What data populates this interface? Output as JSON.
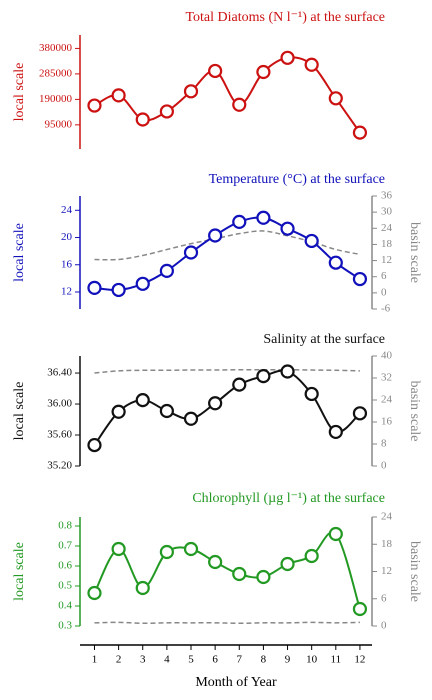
{
  "chart_data": [
    {
      "type": "line",
      "title": "Total Diatoms (N l⁻¹) at the surface",
      "ylabel": "local scale",
      "x": [
        1,
        2,
        3,
        4,
        5,
        6,
        7,
        8,
        9,
        10,
        11,
        12
      ],
      "xlim": [
        0.4,
        12.5
      ],
      "ylim": [
        5000,
        430000
      ],
      "yticks": [
        95000,
        190000,
        285000,
        380000
      ],
      "series": [
        {
          "color": "#cc1111",
          "values": [
            167000,
            205000,
            115000,
            145000,
            220000,
            296000,
            170000,
            292000,
            345000,
            319000,
            194000,
            66000
          ]
        }
      ]
    },
    {
      "type": "line",
      "title": "Temperature (°C) at the surface",
      "ylabel": "local scale",
      "y2label": "basin scale",
      "x": [
        1,
        2,
        3,
        4,
        5,
        6,
        7,
        8,
        9,
        10,
        11,
        12
      ],
      "xlim": [
        0.4,
        12.5
      ],
      "ylim": [
        9.5,
        26.1
      ],
      "yticks": [
        12,
        16,
        20,
        24
      ],
      "y2lim": [
        -6,
        36
      ],
      "y2ticks": [
        -6,
        0,
        6,
        12,
        18,
        24,
        30,
        36
      ],
      "series": [
        {
          "color": "#1111bb",
          "values": [
            12.6,
            12.3,
            13.2,
            15.1,
            17.8,
            20.3,
            22.3,
            22.9,
            21.3,
            19.5,
            16.3,
            13.9
          ]
        },
        {
          "color": "#888888",
          "dashed": true,
          "axis": "y2",
          "values": [
            12.4,
            12.4,
            13.9,
            16.1,
            18.3,
            20.1,
            22,
            23,
            21.2,
            19,
            16.1,
            14.3
          ]
        }
      ]
    },
    {
      "type": "line",
      "title": "Salinity at the surface",
      "ylabel": "local scale",
      "y2label": "basin scale",
      "x": [
        1,
        2,
        3,
        4,
        5,
        6,
        7,
        8,
        9,
        10,
        11,
        12
      ],
      "xlim": [
        0.4,
        12.5
      ],
      "ylim": [
        35.2,
        36.62
      ],
      "yticks": [
        {
          "value": 35.2,
          "label": "35.20"
        },
        {
          "value": 35.6,
          "label": "35.60"
        },
        {
          "value": 36,
          "label": "36.00"
        },
        {
          "value": 36.4,
          "label": "36.40"
        }
      ],
      "y2lim": [
        0,
        40
      ],
      "y2ticks": [
        0,
        8,
        16,
        24,
        32,
        40
      ],
      "series": [
        {
          "color": "#111111",
          "values": [
            35.47,
            35.9,
            36.05,
            35.91,
            35.81,
            36.01,
            36.25,
            36.36,
            36.42,
            36.13,
            35.64,
            35.88
          ]
        },
        {
          "color": "#888888",
          "dashed": true,
          "axis": "y2",
          "values": [
            33.8,
            34.6,
            34.8,
            34.8,
            34.9,
            34.9,
            35,
            35,
            35,
            34.9,
            34.8,
            34.6
          ]
        }
      ]
    },
    {
      "type": "line",
      "title": "Chlorophyll (µg l⁻¹) at the surface",
      "ylabel": "local scale",
      "y2label": "basin scale",
      "x": [
        1,
        2,
        3,
        4,
        5,
        6,
        7,
        8,
        9,
        10,
        11,
        12
      ],
      "xlim": [
        0.4,
        12.5
      ],
      "ylim": [
        0.3,
        0.845
      ],
      "yticks": [
        0.3,
        0.4,
        0.5,
        0.6,
        0.7,
        0.8
      ],
      "y2lim": [
        0,
        24
      ],
      "y2ticks": [
        0,
        6,
        12,
        18,
        24
      ],
      "xlabel": "Month of Year",
      "xticks": [
        1,
        2,
        3,
        4,
        5,
        6,
        7,
        8,
        9,
        10,
        11,
        12
      ],
      "series": [
        {
          "color": "#229922",
          "values": [
            0.465,
            0.685,
            0.49,
            0.67,
            0.685,
            0.62,
            0.56,
            0.545,
            0.61,
            0.65,
            0.76,
            0.385
          ]
        },
        {
          "color": "#888888",
          "dashed": true,
          "axis": "y2",
          "values": [
            0.7,
            0.8,
            0.6,
            0.7,
            0.7,
            0.7,
            0.6,
            0.7,
            0.7,
            0.8,
            0.7,
            0.8
          ]
        }
      ]
    }
  ]
}
